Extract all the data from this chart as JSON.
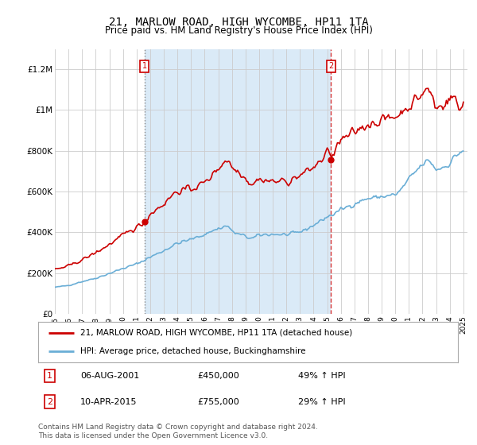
{
  "title": "21, MARLOW ROAD, HIGH WYCOMBE, HP11 1TA",
  "subtitle": "Price paid vs. HM Land Registry's House Price Index (HPI)",
  "legend_label_red": "21, MARLOW ROAD, HIGH WYCOMBE, HP11 1TA (detached house)",
  "legend_label_blue": "HPI: Average price, detached house, Buckinghamshire",
  "annotation1_label": "1",
  "annotation1_date": "06-AUG-2001",
  "annotation1_price": "£450,000",
  "annotation1_hpi": "49% ↑ HPI",
  "annotation1_year": 2001.58,
  "annotation1_value": 450000,
  "annotation2_label": "2",
  "annotation2_date": "10-APR-2015",
  "annotation2_price": "£755,000",
  "annotation2_hpi": "29% ↑ HPI",
  "annotation2_year": 2015.27,
  "annotation2_value": 755000,
  "ylim": [
    0,
    1300000
  ],
  "xlim_start": 1995.0,
  "xlim_end": 2025.3,
  "shade_color": "#daeaf7",
  "background_color": "#ffffff",
  "plot_bg_color": "#ffffff",
  "grid_color": "#cccccc",
  "footer": "Contains HM Land Registry data © Crown copyright and database right 2024.\nThis data is licensed under the Open Government Licence v3.0.",
  "red_color": "#cc0000",
  "blue_color": "#6aaed6",
  "yticks": [
    0,
    200000,
    400000,
    600000,
    800000,
    1000000,
    1200000
  ],
  "ytick_labels": [
    "£0",
    "£200K",
    "£400K",
    "£600K",
    "£800K",
    "£1M",
    "£1.2M"
  ]
}
